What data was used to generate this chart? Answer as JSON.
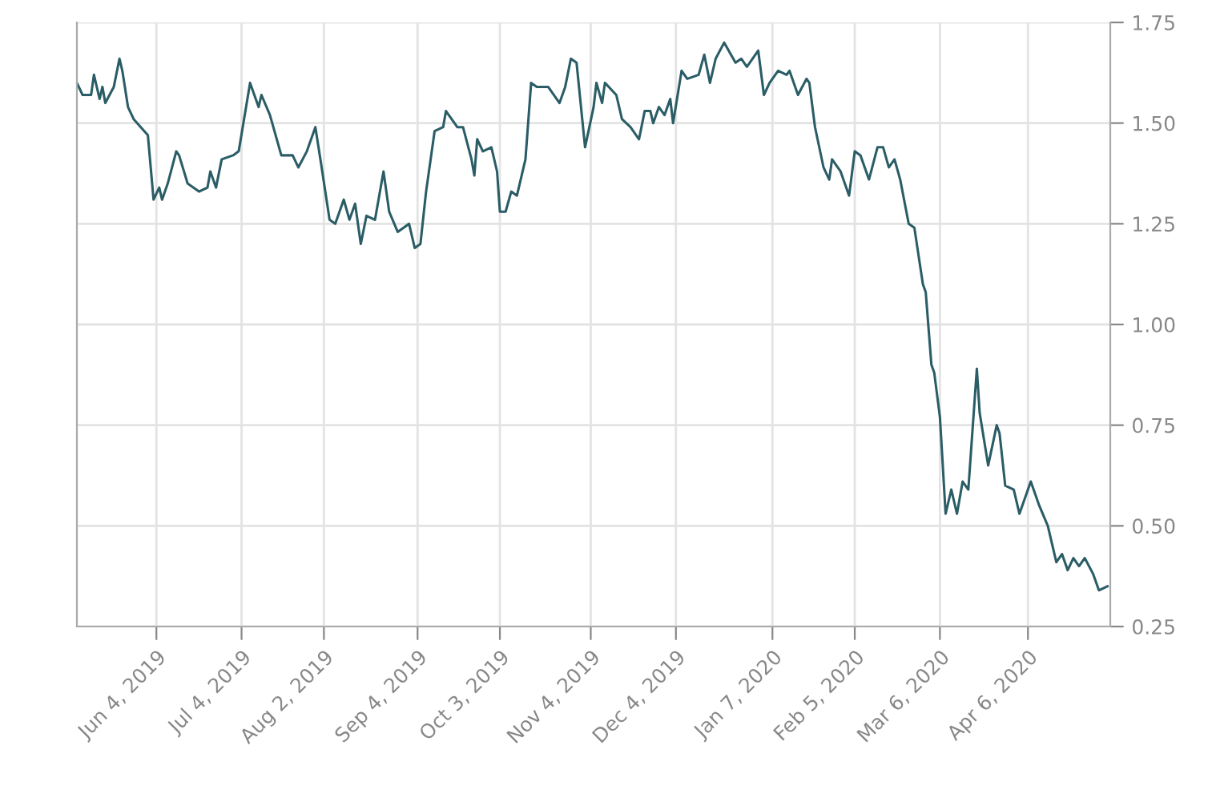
{
  "chart_data": {
    "type": "line",
    "x": [
      "2019-05-07",
      "2019-05-09",
      "2019-05-12",
      "2019-05-13",
      "2019-05-15",
      "2019-05-16",
      "2019-05-17",
      "2019-05-20",
      "2019-05-22",
      "2019-05-23",
      "2019-05-25",
      "2019-05-27",
      "2019-06-01",
      "2019-06-03",
      "2019-06-05",
      "2019-06-06",
      "2019-06-08",
      "2019-06-11",
      "2019-06-12",
      "2019-06-15",
      "2019-06-19",
      "2019-06-22",
      "2019-06-23",
      "2019-06-25",
      "2019-06-27",
      "2019-07-01",
      "2019-07-03",
      "2019-07-07",
      "2019-07-10",
      "2019-07-11",
      "2019-07-14",
      "2019-07-18",
      "2019-07-22",
      "2019-07-24",
      "2019-07-27",
      "2019-07-30",
      "2019-08-01",
      "2019-08-04",
      "2019-08-06",
      "2019-08-09",
      "2019-08-11",
      "2019-08-13",
      "2019-08-15",
      "2019-08-17",
      "2019-08-20",
      "2019-08-23",
      "2019-08-25",
      "2019-08-28",
      "2019-09-01",
      "2019-09-03",
      "2019-09-05",
      "2019-09-07",
      "2019-09-10",
      "2019-09-13",
      "2019-09-14",
      "2019-09-18",
      "2019-09-20",
      "2019-09-23",
      "2019-09-24",
      "2019-09-25",
      "2019-09-27",
      "2019-09-30",
      "2019-10-02",
      "2019-10-03",
      "2019-10-05",
      "2019-10-07",
      "2019-10-09",
      "2019-10-12",
      "2019-10-14",
      "2019-10-16",
      "2019-10-19",
      "2019-10-20",
      "2019-10-24",
      "2019-10-26",
      "2019-10-28",
      "2019-10-30",
      "2019-11-02",
      "2019-11-05",
      "2019-11-06",
      "2019-11-08",
      "2019-11-09",
      "2019-11-13",
      "2019-11-15",
      "2019-11-18",
      "2019-11-21",
      "2019-11-23",
      "2019-11-25",
      "2019-11-26",
      "2019-11-28",
      "2019-11-30",
      "2019-12-02",
      "2019-12-03",
      "2019-12-06",
      "2019-12-08",
      "2019-12-12",
      "2019-12-14",
      "2019-12-16",
      "2019-12-18",
      "2019-12-21",
      "2019-12-25",
      "2019-12-27",
      "2019-12-29",
      "2020-01-02",
      "2020-01-04",
      "2020-01-06",
      "2020-01-09",
      "2020-01-12",
      "2020-01-13",
      "2020-01-16",
      "2020-01-19",
      "2020-01-20",
      "2020-01-22",
      "2020-01-25",
      "2020-01-27",
      "2020-01-28",
      "2020-01-31",
      "2020-02-03",
      "2020-02-05",
      "2020-02-07",
      "2020-02-10",
      "2020-02-13",
      "2020-02-15",
      "2020-02-17",
      "2020-02-19",
      "2020-02-21",
      "2020-02-24",
      "2020-02-26",
      "2020-02-29",
      "2020-03-01",
      "2020-03-03",
      "2020-03-04",
      "2020-03-06",
      "2020-03-08",
      "2020-03-10",
      "2020-03-12",
      "2020-03-14",
      "2020-03-16",
      "2020-03-19",
      "2020-03-20",
      "2020-03-23",
      "2020-03-26",
      "2020-03-27",
      "2020-03-29",
      "2020-04-01",
      "2020-04-03",
      "2020-04-04",
      "2020-04-07",
      "2020-04-10",
      "2020-04-13",
      "2020-04-16",
      "2020-04-18",
      "2020-04-20",
      "2020-04-22",
      "2020-04-24",
      "2020-04-26",
      "2020-04-29",
      "2020-05-01",
      "2020-05-04"
    ],
    "series": [
      {
        "color": "#2a5d66",
        "values": [
          1.6,
          1.57,
          1.57,
          1.62,
          1.56,
          1.59,
          1.55,
          1.59,
          1.66,
          1.63,
          1.54,
          1.51,
          1.47,
          1.31,
          1.34,
          1.31,
          1.35,
          1.43,
          1.42,
          1.35,
          1.33,
          1.34,
          1.38,
          1.34,
          1.41,
          1.42,
          1.43,
          1.6,
          1.54,
          1.57,
          1.52,
          1.42,
          1.42,
          1.39,
          1.43,
          1.49,
          1.4,
          1.26,
          1.25,
          1.31,
          1.26,
          1.3,
          1.2,
          1.27,
          1.26,
          1.38,
          1.28,
          1.23,
          1.25,
          1.19,
          1.2,
          1.33,
          1.48,
          1.49,
          1.53,
          1.49,
          1.49,
          1.41,
          1.37,
          1.46,
          1.43,
          1.44,
          1.38,
          1.28,
          1.28,
          1.33,
          1.32,
          1.41,
          1.6,
          1.59,
          1.59,
          1.59,
          1.55,
          1.59,
          1.66,
          1.65,
          1.44,
          1.54,
          1.6,
          1.55,
          1.6,
          1.57,
          1.51,
          1.49,
          1.46,
          1.53,
          1.53,
          1.5,
          1.54,
          1.52,
          1.56,
          1.5,
          1.63,
          1.61,
          1.62,
          1.67,
          1.6,
          1.66,
          1.7,
          1.65,
          1.66,
          1.64,
          1.68,
          1.57,
          1.6,
          1.63,
          1.62,
          1.63,
          1.57,
          1.61,
          1.6,
          1.49,
          1.39,
          1.36,
          1.41,
          1.38,
          1.32,
          1.43,
          1.42,
          1.36,
          1.44,
          1.44,
          1.39,
          1.41,
          1.36,
          1.25,
          1.24,
          1.1,
          1.08,
          0.9,
          0.88,
          0.77,
          0.53,
          0.59,
          0.53,
          0.61,
          0.59,
          0.89,
          0.78,
          0.65,
          0.75,
          0.73,
          0.6,
          0.59,
          0.53,
          0.55,
          0.61,
          0.55,
          0.5,
          0.41,
          0.43,
          0.39,
          0.42,
          0.4,
          0.42,
          0.38,
          0.34,
          0.35
        ]
      }
    ],
    "xlim": [
      "2019-05-07",
      "2020-05-05"
    ],
    "xticks": [
      {
        "value": "2019-06-04",
        "label": "Jun 4, 2019"
      },
      {
        "value": "2019-07-04",
        "label": "Jul 4, 2019"
      },
      {
        "value": "2019-08-02",
        "label": "Aug 2, 2019"
      },
      {
        "value": "2019-09-04",
        "label": "Sep 4, 2019"
      },
      {
        "value": "2019-10-03",
        "label": "Oct 3, 2019"
      },
      {
        "value": "2019-11-04",
        "label": "Nov 4, 2019"
      },
      {
        "value": "2019-12-04",
        "label": "Dec 4, 2019"
      },
      {
        "value": "2020-01-07",
        "label": "Jan 7, 2020"
      },
      {
        "value": "2020-02-05",
        "label": "Feb 5, 2020"
      },
      {
        "value": "2020-03-06",
        "label": "Mar 6, 2020"
      },
      {
        "value": "2020-04-06",
        "label": "Apr 6, 2020"
      }
    ],
    "ylim": [
      0.25,
      1.75
    ],
    "yticks": [
      {
        "value": 0.25,
        "label": "0.25"
      },
      {
        "value": 0.5,
        "label": "0.50"
      },
      {
        "value": 0.75,
        "label": "0.75"
      },
      {
        "value": 1.0,
        "label": "1.00"
      },
      {
        "value": 1.25,
        "label": "1.25"
      },
      {
        "value": 1.5,
        "label": "1.50"
      },
      {
        "value": 1.75,
        "label": "1.75"
      }
    ],
    "grid": true
  }
}
